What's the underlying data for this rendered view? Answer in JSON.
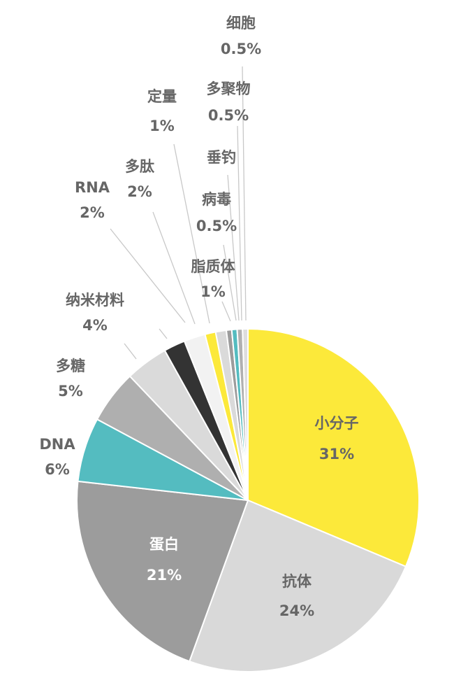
{
  "chart_data": {
    "type": "pie",
    "slices": [
      {
        "name": "小分子",
        "value": 31,
        "label": "31%",
        "color": "#FCE93A"
      },
      {
        "name": "抗体",
        "value": 24,
        "label": "24%",
        "color": "#D9D9D9"
      },
      {
        "name": "蛋白",
        "value": 21,
        "label": "21%",
        "color": "#9C9C9C"
      },
      {
        "name": "DNA",
        "value": 6,
        "label": "6%",
        "color": "#54BCC0"
      },
      {
        "name": "多糖",
        "value": 5,
        "label": "5%",
        "color": "#AFAFAF"
      },
      {
        "name": "纳米材料",
        "value": 4,
        "label": "4%",
        "color": "#DADADA"
      },
      {
        "name": "RNA",
        "value": 2,
        "label": "2%",
        "color": "#333333"
      },
      {
        "name": "多肽",
        "value": 2,
        "label": "2%",
        "color": "#F2F2F2"
      },
      {
        "name": "定量",
        "value": 1,
        "label": "1%",
        "color": "#FCE93A"
      },
      {
        "name": "脂质体",
        "value": 1,
        "label": "1%",
        "color": "#DADADA"
      },
      {
        "name": "病毒",
        "value": 0.5,
        "label": "0.5%",
        "color": "#9C9C9C"
      },
      {
        "name": "垂钓",
        "value": 0.5,
        "label": "",
        "color": "#54BCC0"
      },
      {
        "name": "多聚物",
        "value": 0.5,
        "label": "0.5%",
        "color": "#B0B0B0"
      },
      {
        "name": "细胞",
        "value": 0.5,
        "label": "0.5%",
        "color": "#DDDDDD"
      }
    ]
  }
}
